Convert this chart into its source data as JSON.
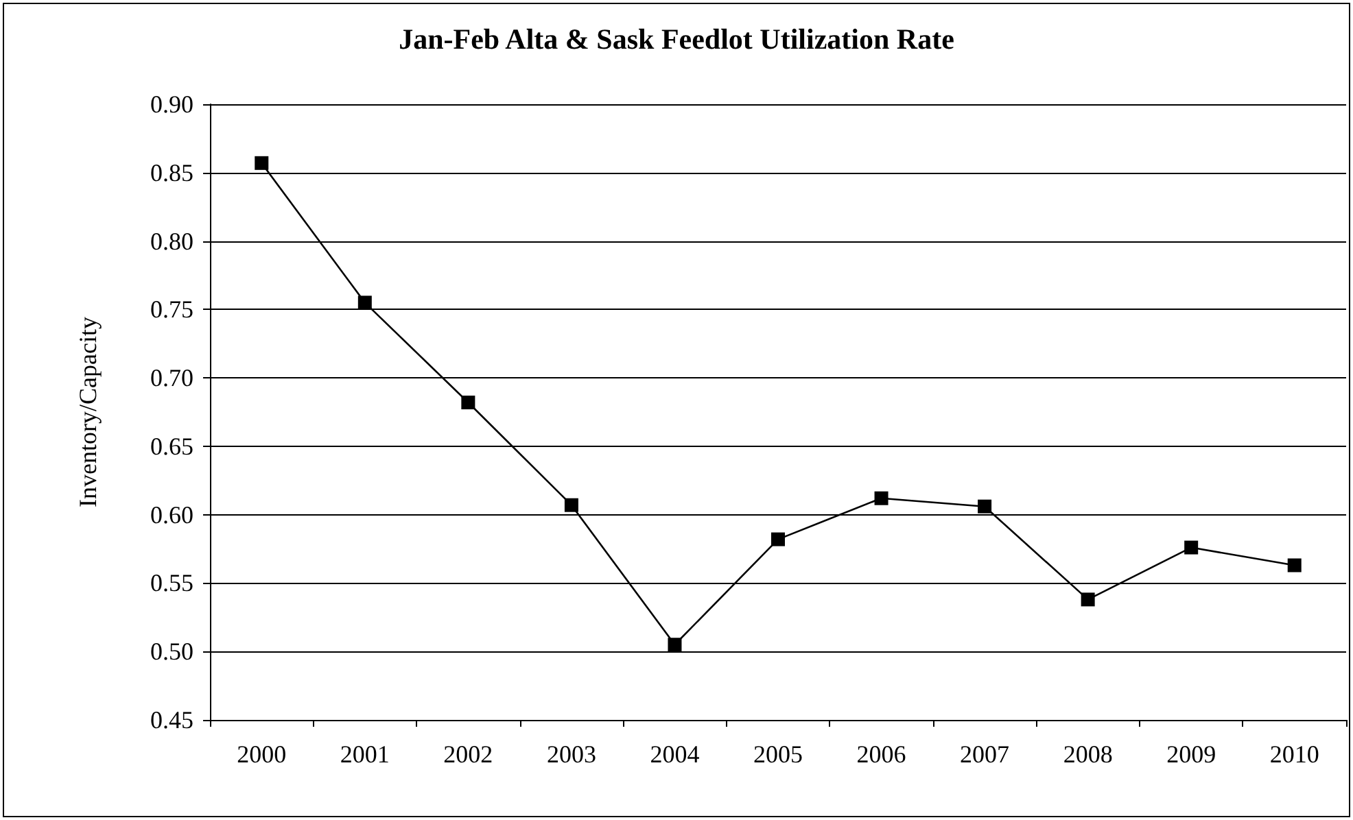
{
  "chart_data": {
    "type": "line",
    "title": "Jan-Feb Alta & Sask Feedlot Utilization Rate",
    "ylabel": "Inventory/Capacity",
    "categories": [
      "2000",
      "2001",
      "2002",
      "2003",
      "2004",
      "2005",
      "2006",
      "2007",
      "2008",
      "2009",
      "2010"
    ],
    "series": [
      {
        "color": "#000000",
        "values": [
          0.857,
          0.755,
          0.682,
          0.607,
          0.505,
          0.582,
          0.612,
          0.606,
          0.538,
          0.576,
          0.563
        ]
      }
    ],
    "ylim": [
      0.45,
      0.9
    ],
    "yticks": [
      {
        "value": 0.45,
        "label": "0.45"
      },
      {
        "value": 0.5,
        "label": "0.50"
      },
      {
        "value": 0.55,
        "label": "0.55"
      },
      {
        "value": 0.6,
        "label": "0.60"
      },
      {
        "value": 0.65,
        "label": "0.65"
      },
      {
        "value": 0.7,
        "label": "0.70"
      },
      {
        "value": 0.75,
        "label": "0.75"
      },
      {
        "value": 0.8,
        "label": "0.80"
      },
      {
        "value": 0.85,
        "label": "0.85"
      },
      {
        "value": 0.9,
        "label": "0.90"
      }
    ],
    "grid": "y",
    "marker": "square",
    "line_style": "solid"
  }
}
